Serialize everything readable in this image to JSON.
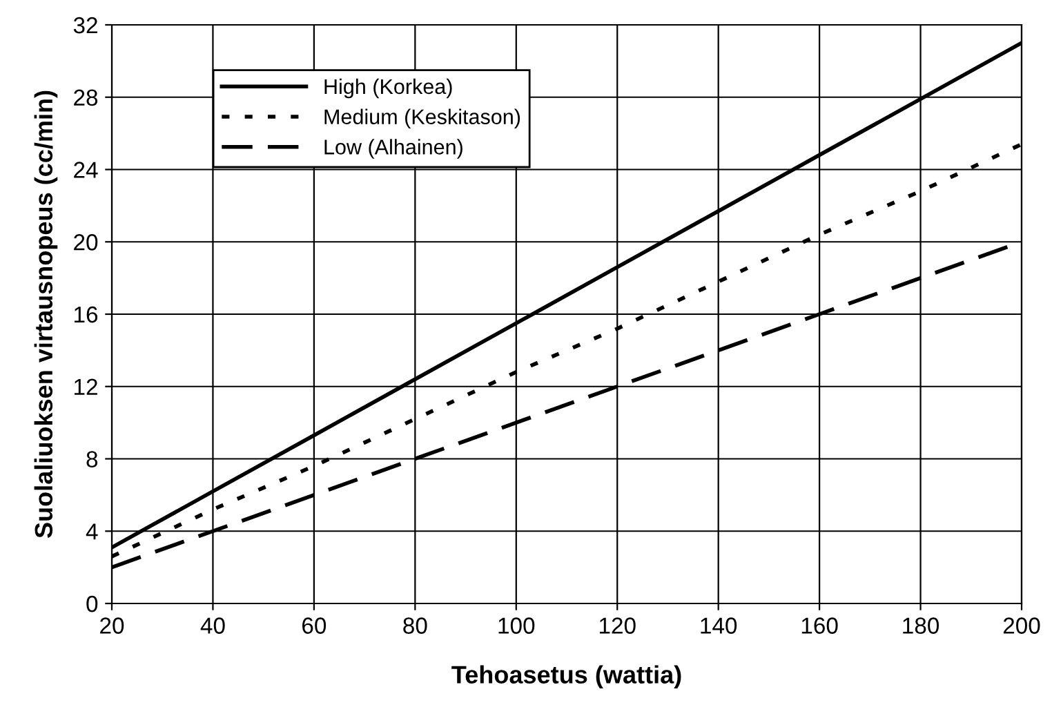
{
  "chart_data": {
    "type": "line",
    "xlabel": "Tehoasetus (wattia)",
    "ylabel": "Suolaliuoksen virtausnopeus (cc/min)",
    "x": [
      20,
      40,
      60,
      80,
      100,
      120,
      140,
      160,
      180,
      200
    ],
    "series": [
      {
        "name": "High (Korkea)",
        "color": "#000000",
        "line_style": "solid",
        "values": [
          3.1,
          6.2,
          9.3,
          12.4,
          15.5,
          18.6,
          21.7,
          24.8,
          27.9,
          31
        ]
      },
      {
        "name": "Medium (Keskitason)",
        "color": "#000000",
        "line_style": "dotted",
        "values": [
          2.6,
          5.2,
          7.6,
          10.2,
          12.8,
          15.2,
          17.8,
          20.4,
          22.8,
          25.4
        ]
      },
      {
        "name": "Low (Alhainen)",
        "color": "#000000",
        "line_style": "dashed",
        "values": [
          2,
          4,
          6,
          8,
          10,
          12,
          14,
          16,
          18,
          20
        ]
      }
    ],
    "xlim": [
      20,
      200
    ],
    "xticks": [
      20,
      40,
      60,
      80,
      100,
      120,
      140,
      160,
      180,
      200
    ],
    "ylim": [
      0,
      32
    ],
    "yticks": [
      0,
      4,
      8,
      12,
      16,
      20,
      24,
      28,
      32
    ],
    "grid": true,
    "legend": "top left",
    "marker": "none"
  }
}
